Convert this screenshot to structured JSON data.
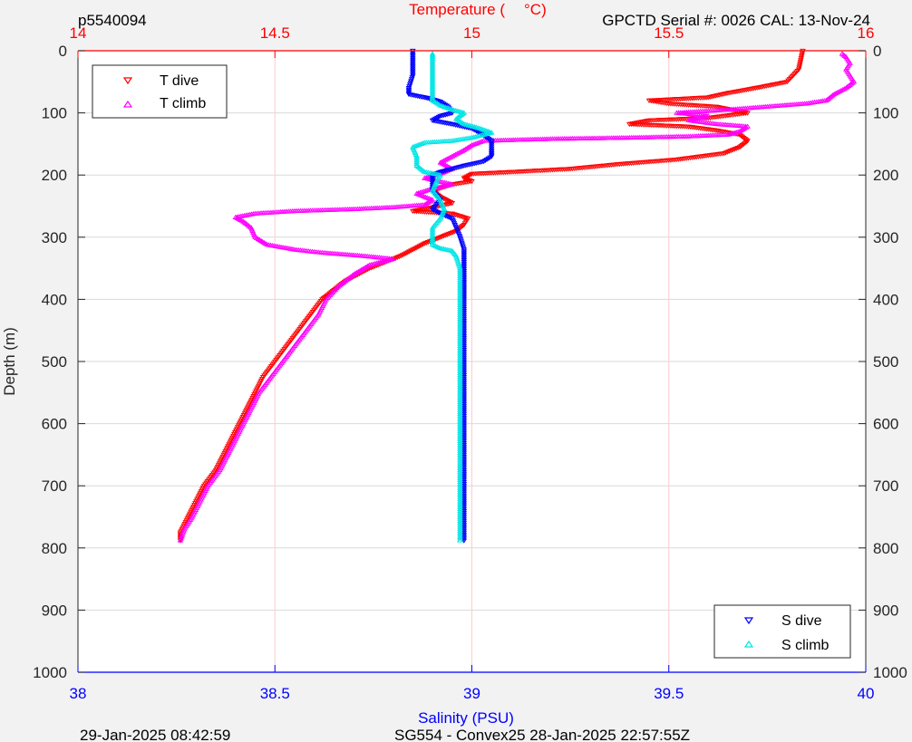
{
  "header": {
    "left_text": "p5540094",
    "right_text": "GPCTD Serial #: 0026 CAL: 13-Nov-24"
  },
  "footer": {
    "left_text": "29-Jan-2025 08:42:59",
    "center_text": "SG554 - Convex25 28-Jan-2025 22:57:55Z"
  },
  "colors": {
    "temperature_axis": "#ff0000",
    "salinity_axis": "#0000ff",
    "t_dive": "#ff0000",
    "t_climb": "#ff00ff",
    "s_dive": "#0000ff",
    "s_climb": "#00e5e5",
    "grid_temperature": "#ffcccc",
    "grid_depth": "#d9d9d9"
  },
  "chart_data": {
    "type": "scatter",
    "title": "",
    "ylabel": "Depth (m)",
    "ylim": [
      0,
      1000
    ],
    "y_reversed": true,
    "y_ticks": [
      0,
      100,
      200,
      300,
      400,
      500,
      600,
      700,
      800,
      900,
      1000
    ],
    "x_top": {
      "label": "Temperature (°C)",
      "label_left": "Temperature (",
      "label_right": "°C)",
      "range": [
        14,
        16
      ],
      "ticks": [
        "14",
        "14.5",
        "15",
        "15.5",
        "16"
      ]
    },
    "x_bottom": {
      "label": "Salinity (PSU)",
      "range": [
        38,
        40
      ],
      "ticks": [
        "38",
        "38.5",
        "39",
        "39.5",
        "40"
      ]
    },
    "grid": true,
    "legend_top_left": [
      "T dive",
      "T climb"
    ],
    "legend_bottom_right": [
      "S dive",
      "S climb"
    ],
    "series": [
      {
        "name": "T dive",
        "axis": "temperature",
        "marker": "triangle-down",
        "points": [
          [
            15.84,
            0
          ],
          [
            15.83,
            30
          ],
          [
            15.8,
            50
          ],
          [
            15.72,
            60
          ],
          [
            15.65,
            68
          ],
          [
            15.6,
            75
          ],
          [
            15.45,
            80
          ],
          [
            15.5,
            85
          ],
          [
            15.62,
            90
          ],
          [
            15.7,
            100
          ],
          [
            15.6,
            108
          ],
          [
            15.45,
            112
          ],
          [
            15.4,
            118
          ],
          [
            15.55,
            122
          ],
          [
            15.62,
            128
          ],
          [
            15.68,
            135
          ],
          [
            15.7,
            145
          ],
          [
            15.68,
            155
          ],
          [
            15.64,
            165
          ],
          [
            15.52,
            175
          ],
          [
            15.38,
            182
          ],
          [
            15.25,
            190
          ],
          [
            15.1,
            195
          ],
          [
            15.0,
            198
          ],
          [
            14.98,
            205
          ],
          [
            15.0,
            210
          ],
          [
            14.95,
            215
          ],
          [
            14.9,
            225
          ],
          [
            14.92,
            235
          ],
          [
            14.95,
            245
          ],
          [
            14.9,
            252
          ],
          [
            14.85,
            258
          ],
          [
            14.95,
            262
          ],
          [
            14.99,
            270
          ],
          [
            14.98,
            280
          ],
          [
            14.96,
            290
          ],
          [
            14.92,
            300
          ],
          [
            14.88,
            310
          ],
          [
            14.85,
            320
          ],
          [
            14.82,
            330
          ],
          [
            14.78,
            340
          ],
          [
            14.74,
            350
          ],
          [
            14.71,
            360
          ],
          [
            14.68,
            370
          ],
          [
            14.66,
            380
          ],
          [
            14.64,
            390
          ],
          [
            14.62,
            400
          ],
          [
            14.59,
            425
          ],
          [
            14.56,
            450
          ],
          [
            14.53,
            475
          ],
          [
            14.5,
            500
          ],
          [
            14.47,
            525
          ],
          [
            14.45,
            550
          ],
          [
            14.43,
            575
          ],
          [
            14.41,
            600
          ],
          [
            14.39,
            625
          ],
          [
            14.37,
            650
          ],
          [
            14.35,
            675
          ],
          [
            14.32,
            700
          ],
          [
            14.3,
            725
          ],
          [
            14.28,
            750
          ],
          [
            14.26,
            775
          ],
          [
            14.26,
            788
          ]
        ]
      },
      {
        "name": "T climb",
        "axis": "temperature",
        "marker": "triangle-up",
        "points": [
          [
            14.26,
            788
          ],
          [
            14.27,
            770
          ],
          [
            14.29,
            750
          ],
          [
            14.31,
            725
          ],
          [
            14.33,
            700
          ],
          [
            14.36,
            675
          ],
          [
            14.38,
            650
          ],
          [
            14.4,
            625
          ],
          [
            14.42,
            600
          ],
          [
            14.44,
            575
          ],
          [
            14.46,
            550
          ],
          [
            14.49,
            525
          ],
          [
            14.52,
            500
          ],
          [
            14.55,
            475
          ],
          [
            14.58,
            450
          ],
          [
            14.61,
            425
          ],
          [
            14.63,
            400
          ],
          [
            14.66,
            380
          ],
          [
            14.7,
            360
          ],
          [
            14.74,
            345
          ],
          [
            14.8,
            335
          ],
          [
            14.72,
            330
          ],
          [
            14.62,
            325
          ],
          [
            14.55,
            320
          ],
          [
            14.48,
            312
          ],
          [
            14.45,
            300
          ],
          [
            14.44,
            285
          ],
          [
            14.42,
            275
          ],
          [
            14.4,
            268
          ],
          [
            14.45,
            262
          ],
          [
            14.55,
            258
          ],
          [
            14.7,
            255
          ],
          [
            14.8,
            252
          ],
          [
            14.88,
            248
          ],
          [
            14.9,
            240
          ],
          [
            14.86,
            230
          ],
          [
            14.9,
            222
          ],
          [
            14.95,
            215
          ],
          [
            14.88,
            205
          ],
          [
            14.92,
            198
          ],
          [
            14.95,
            190
          ],
          [
            14.92,
            180
          ],
          [
            14.95,
            170
          ],
          [
            14.98,
            160
          ],
          [
            15.0,
            152
          ],
          [
            15.03,
            145
          ],
          [
            15.2,
            142
          ],
          [
            15.4,
            140
          ],
          [
            15.55,
            138
          ],
          [
            15.65,
            135
          ],
          [
            15.68,
            130
          ],
          [
            15.7,
            122
          ],
          [
            15.62,
            118
          ],
          [
            15.55,
            112
          ],
          [
            15.6,
            105
          ],
          [
            15.52,
            100
          ],
          [
            15.65,
            95
          ],
          [
            15.75,
            90
          ],
          [
            15.85,
            85
          ],
          [
            15.9,
            80
          ],
          [
            15.92,
            70
          ],
          [
            15.95,
            60
          ],
          [
            15.97,
            50
          ],
          [
            15.96,
            40
          ],
          [
            15.95,
            30
          ],
          [
            15.96,
            20
          ],
          [
            15.95,
            10
          ],
          [
            15.94,
            5
          ]
        ]
      },
      {
        "name": "S dive",
        "axis": "salinity",
        "marker": "triangle-down",
        "points": [
          [
            38.85,
            0
          ],
          [
            38.85,
            20
          ],
          [
            38.85,
            40
          ],
          [
            38.84,
            60
          ],
          [
            38.84,
            70
          ],
          [
            38.88,
            75
          ],
          [
            38.9,
            78
          ],
          [
            38.92,
            82
          ],
          [
            38.94,
            90
          ],
          [
            38.95,
            100
          ],
          [
            38.92,
            105
          ],
          [
            38.9,
            112
          ],
          [
            38.95,
            118
          ],
          [
            39.0,
            125
          ],
          [
            39.02,
            132
          ],
          [
            39.05,
            145
          ],
          [
            39.05,
            160
          ],
          [
            39.05,
            170
          ],
          [
            39.03,
            178
          ],
          [
            38.98,
            185
          ],
          [
            38.92,
            195
          ],
          [
            38.9,
            200
          ],
          [
            38.9,
            210
          ],
          [
            38.9,
            225
          ],
          [
            38.92,
            240
          ],
          [
            38.9,
            255
          ],
          [
            38.92,
            262
          ],
          [
            38.95,
            270
          ],
          [
            38.96,
            285
          ],
          [
            38.97,
            300
          ],
          [
            38.98,
            320
          ],
          [
            38.98,
            340
          ],
          [
            38.98,
            360
          ],
          [
            38.98,
            380
          ],
          [
            38.98,
            400
          ],
          [
            38.98,
            450
          ],
          [
            38.98,
            500
          ],
          [
            38.98,
            550
          ],
          [
            38.98,
            600
          ],
          [
            38.98,
            650
          ],
          [
            38.98,
            700
          ],
          [
            38.98,
            750
          ],
          [
            38.98,
            788
          ]
        ]
      },
      {
        "name": "S climb",
        "axis": "salinity",
        "marker": "triangle-up",
        "points": [
          [
            38.97,
            788
          ],
          [
            38.97,
            750
          ],
          [
            38.97,
            700
          ],
          [
            38.97,
            650
          ],
          [
            38.97,
            600
          ],
          [
            38.97,
            550
          ],
          [
            38.97,
            500
          ],
          [
            38.97,
            450
          ],
          [
            38.97,
            400
          ],
          [
            38.97,
            350
          ],
          [
            38.96,
            330
          ],
          [
            38.95,
            322
          ],
          [
            38.92,
            318
          ],
          [
            38.9,
            312
          ],
          [
            38.9,
            300
          ],
          [
            38.9,
            285
          ],
          [
            38.92,
            270
          ],
          [
            38.93,
            255
          ],
          [
            38.92,
            240
          ],
          [
            38.9,
            225
          ],
          [
            38.91,
            210
          ],
          [
            38.92,
            200
          ],
          [
            38.88,
            195
          ],
          [
            38.86,
            185
          ],
          [
            38.86,
            170
          ],
          [
            38.85,
            155
          ],
          [
            38.88,
            148
          ],
          [
            38.95,
            145
          ],
          [
            39.0,
            140
          ],
          [
            39.05,
            132
          ],
          [
            39.02,
            125
          ],
          [
            38.98,
            118
          ],
          [
            38.96,
            110
          ],
          [
            38.98,
            100
          ],
          [
            38.95,
            95
          ],
          [
            38.92,
            88
          ],
          [
            38.9,
            80
          ],
          [
            38.9,
            70
          ],
          [
            38.9,
            50
          ],
          [
            38.9,
            30
          ],
          [
            38.9,
            10
          ],
          [
            38.9,
            5
          ]
        ]
      }
    ]
  }
}
